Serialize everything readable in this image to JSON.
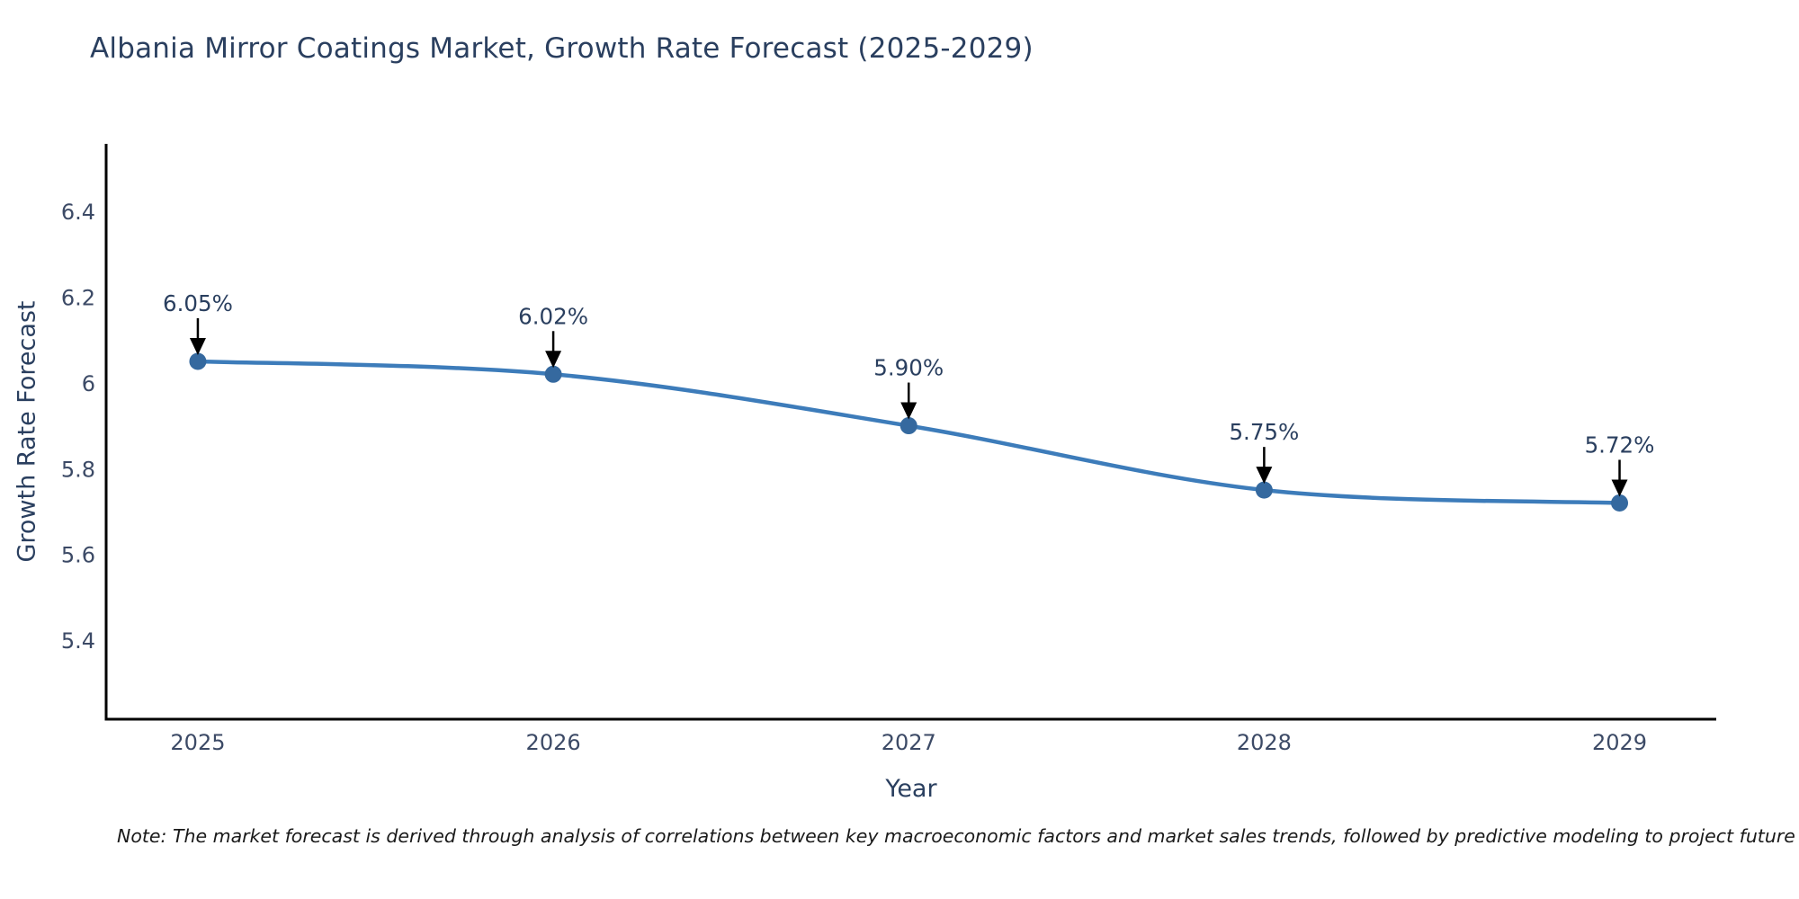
{
  "note": "Note: The market forecast is derived through analysis of correlations between key macroeconomic factors and market sales trends, followed by predictive modeling to project future sales",
  "chart_data": {
    "type": "line",
    "title": "Albania Mirror Coatings Market, Growth Rate Forecast (2025-2029)",
    "xlabel": "Year",
    "ylabel": "Growth Rate Forecast",
    "x": [
      2025,
      2026,
      2027,
      2028,
      2029
    ],
    "y": [
      6.05,
      6.02,
      5.9,
      5.75,
      5.72
    ],
    "point_labels": [
      "6.05%",
      "6.02%",
      "5.90%",
      "5.75%",
      "5.72%"
    ],
    "x_tick_labels": [
      "2025",
      "2026",
      "2027",
      "2028",
      "2029"
    ],
    "x_ticks": [
      2025,
      2026,
      2027,
      2028,
      2029
    ],
    "y_tick_labels": [
      "5.4",
      "5.6",
      "5.8",
      "6",
      "6.2",
      "6.4"
    ],
    "y_ticks": [
      5.4,
      5.6,
      5.8,
      6.0,
      6.2,
      6.4
    ],
    "xlim": [
      2024.742,
      2029.272
    ],
    "ylim": [
      5.216,
      6.557
    ],
    "line_shape": "spline",
    "grid": false,
    "legend": "none",
    "annotation_style": "label-above-with-down-arrow",
    "colors": {
      "line": "#3d7cba",
      "marker": "#35699f",
      "axis": "#000000",
      "title_text": "#2a3f5f",
      "tick_text": "#3c4a66",
      "annotation_text": "#2a3f5f",
      "arrow": "#000000",
      "note_text": "#1a1a1a",
      "background": "#ffffff"
    }
  }
}
